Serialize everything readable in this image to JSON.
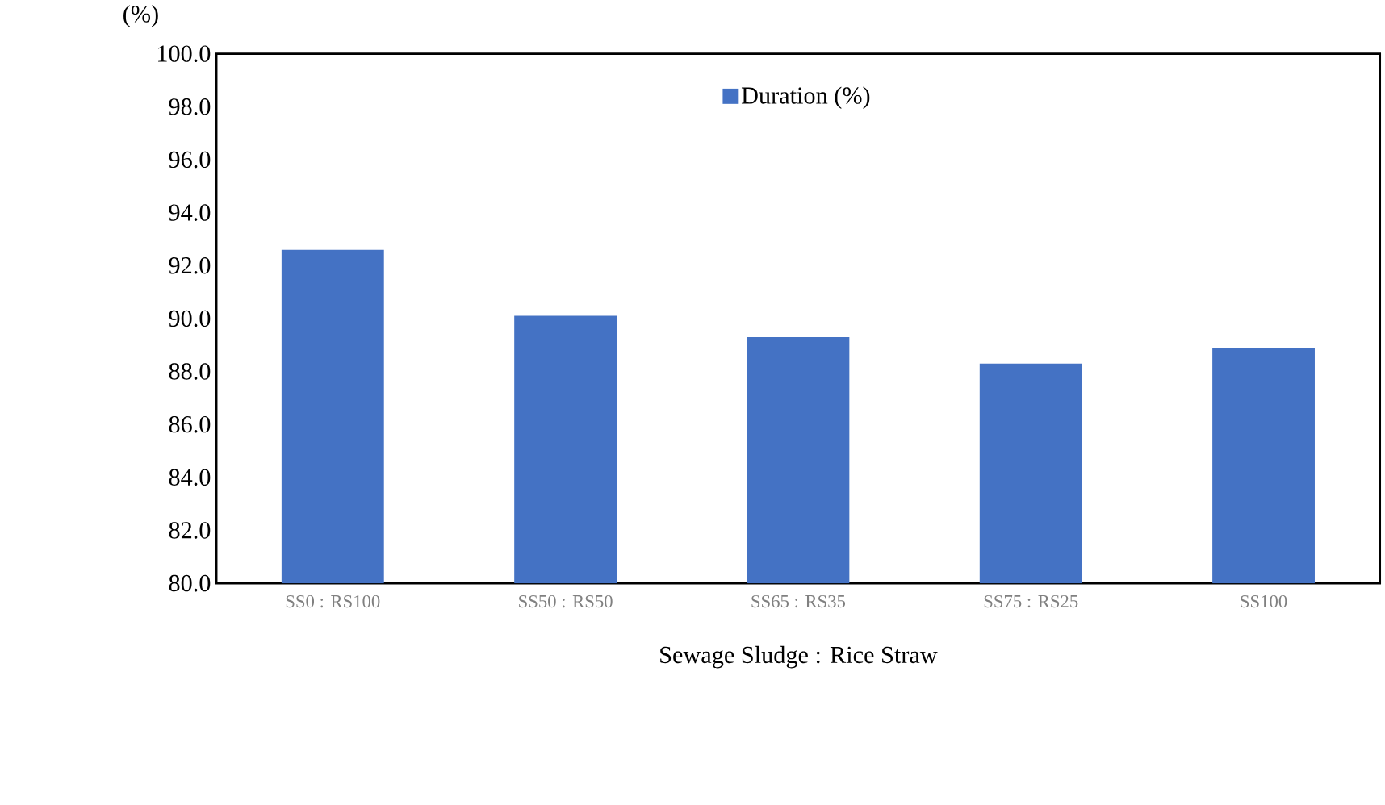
{
  "chart_data": {
    "type": "bar",
    "categories": [
      "SS0 : RS100",
      "SS50 : RS50",
      "SS65 : RS35",
      "SS75 : RS25",
      "SS100"
    ],
    "series": [
      {
        "name": "Duration (%)",
        "color": "#4472c4",
        "values": [
          92.6,
          90.1,
          89.3,
          88.3,
          88.9
        ]
      }
    ],
    "xlabel": "Sewage Sludge : Rice Straw",
    "ylabel": "(%)",
    "ylim": [
      80,
      100
    ],
    "yticks": [
      {
        "value": 80,
        "label": "80.0"
      },
      {
        "value": 82,
        "label": "82.0"
      },
      {
        "value": 84,
        "label": "84.0"
      },
      {
        "value": 86,
        "label": "86.0"
      },
      {
        "value": 88,
        "label": "88.0"
      },
      {
        "value": 90,
        "label": "90.0"
      },
      {
        "value": 92,
        "label": "92.0"
      },
      {
        "value": 94,
        "label": "94.0"
      },
      {
        "value": 96,
        "label": "96.0"
      },
      {
        "value": 98,
        "label": "98.0"
      },
      {
        "value": 100,
        "label": "100.0"
      }
    ],
    "legend": "top",
    "grid": false
  }
}
